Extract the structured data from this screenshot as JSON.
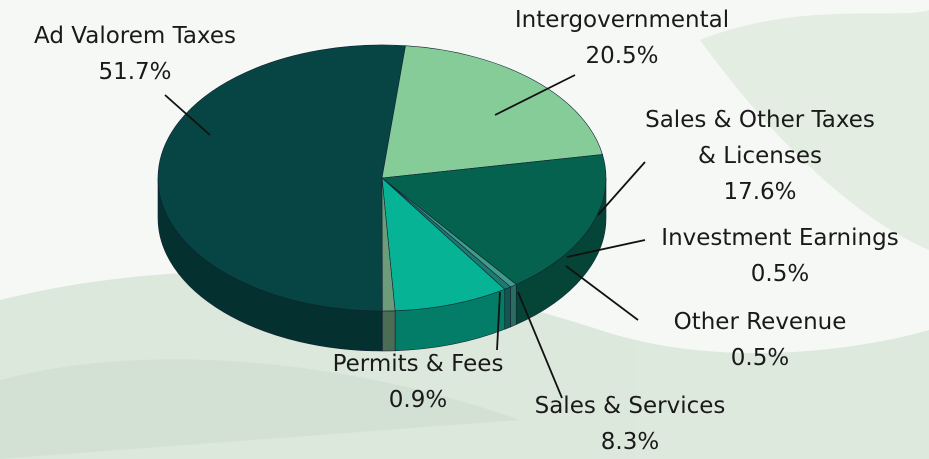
{
  "chart_data": {
    "type": "pie",
    "categories": [
      "Ad Valorem Taxes",
      "Intergovernmental",
      "Sales & Other Taxes & Licenses",
      "Investment Earnings",
      "Other Revenue",
      "Sales & Services",
      "Permits & Fees"
    ],
    "values": [
      51.7,
      20.5,
      17.6,
      0.5,
      0.5,
      8.3,
      0.9
    ],
    "value_labels": [
      "51.7%",
      "20.5%",
      "17.6%",
      "0.5%",
      "0.5%",
      "8.3%",
      "0.9%"
    ],
    "colors": [
      "#074545",
      "#86cc99",
      "#05624f",
      "#3f9c8a",
      "#1c7a70",
      "#06b394",
      "#6c9c7a"
    ]
  }
}
